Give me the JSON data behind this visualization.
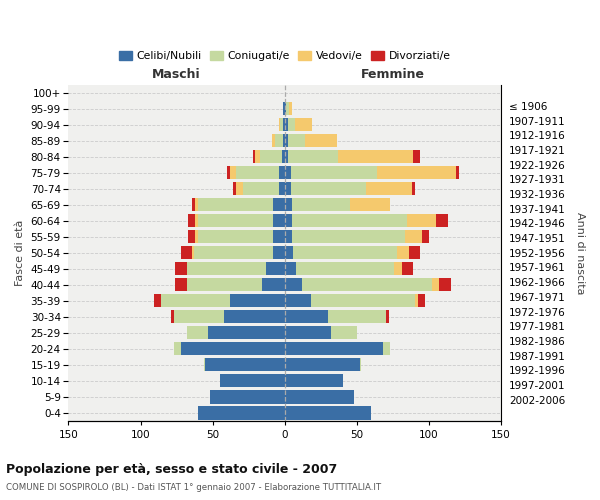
{
  "age_groups": [
    "0-4",
    "5-9",
    "10-14",
    "15-19",
    "20-24",
    "25-29",
    "30-34",
    "35-39",
    "40-44",
    "45-49",
    "50-54",
    "55-59",
    "60-64",
    "65-69",
    "70-74",
    "75-79",
    "80-84",
    "85-89",
    "90-94",
    "95-99",
    "100+"
  ],
  "birth_years": [
    "2002-2006",
    "1997-2001",
    "1992-1996",
    "1987-1991",
    "1982-1986",
    "1977-1981",
    "1972-1976",
    "1967-1971",
    "1962-1966",
    "1957-1961",
    "1952-1956",
    "1947-1951",
    "1942-1946",
    "1937-1941",
    "1932-1936",
    "1927-1931",
    "1922-1926",
    "1917-1921",
    "1912-1916",
    "1907-1911",
    "≤ 1906"
  ],
  "males_celibi": [
    60,
    52,
    45,
    55,
    72,
    53,
    42,
    38,
    16,
    13,
    8,
    8,
    8,
    8,
    4,
    4,
    2,
    1,
    1,
    1,
    0
  ],
  "males_coniugati": [
    0,
    0,
    0,
    1,
    5,
    15,
    35,
    48,
    52,
    55,
    55,
    52,
    52,
    52,
    25,
    30,
    15,
    6,
    2,
    0,
    0
  ],
  "males_vedovi": [
    0,
    0,
    0,
    0,
    0,
    0,
    0,
    0,
    0,
    0,
    1,
    2,
    2,
    2,
    5,
    4,
    4,
    2,
    1,
    0,
    0
  ],
  "males_divorziati": [
    0,
    0,
    0,
    0,
    0,
    0,
    2,
    5,
    8,
    8,
    8,
    5,
    5,
    2,
    2,
    2,
    1,
    0,
    0,
    0,
    0
  ],
  "females_nubili": [
    60,
    48,
    40,
    52,
    68,
    32,
    30,
    18,
    12,
    8,
    6,
    5,
    5,
    5,
    4,
    4,
    2,
    2,
    2,
    1,
    0
  ],
  "females_coniugate": [
    0,
    0,
    0,
    1,
    5,
    18,
    40,
    72,
    90,
    68,
    72,
    78,
    80,
    40,
    52,
    60,
    35,
    12,
    5,
    2,
    0
  ],
  "females_vedove": [
    0,
    0,
    0,
    0,
    0,
    0,
    0,
    2,
    5,
    5,
    8,
    12,
    20,
    28,
    32,
    55,
    52,
    22,
    12,
    2,
    0
  ],
  "females_divorziate": [
    0,
    0,
    0,
    0,
    0,
    0,
    2,
    5,
    8,
    8,
    8,
    5,
    8,
    0,
    2,
    2,
    5,
    0,
    0,
    0,
    0
  ],
  "color_celibi": "#3a6ea5",
  "color_coniugati": "#c5d9a0",
  "color_vedovi": "#f5c96d",
  "color_divorziati": "#cc2222",
  "title": "Popolazione per età, sesso e stato civile - 2007",
  "subtitle": "COMUNE DI SOSPIROLO (BL) - Dati ISTAT 1° gennaio 2007 - Elaborazione TUTTITALIA.IT",
  "label_maschi": "Maschi",
  "label_femmine": "Femmine",
  "ylabel_left": "Fasce di età",
  "ylabel_right": "Anni di nascita",
  "xlim": 150,
  "legend_labels": [
    "Celibi/Nubili",
    "Coniugati/e",
    "Vedovi/e",
    "Divorziati/e"
  ],
  "bg_color": "#ffffff",
  "plot_bg_color": "#f0f0ee"
}
